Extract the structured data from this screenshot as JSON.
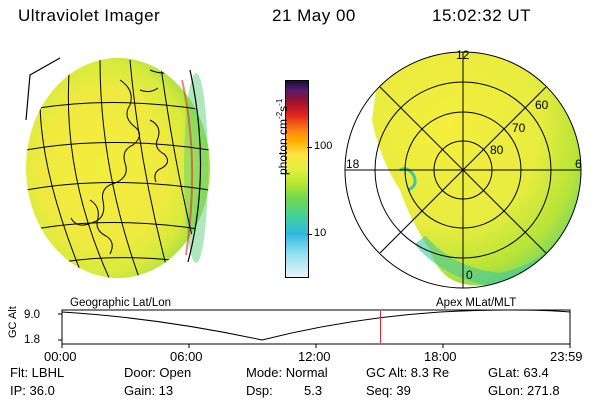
{
  "header": {
    "instrument": "Ultraviolet Imager",
    "date": "21 May 00",
    "time": "15:02:32 UT"
  },
  "colorbar": {
    "unit_main": "photon cm",
    "unit_sup1": "-2",
    "unit_mid": "s",
    "unit_sup2": "-1",
    "tick_labels": [
      "100",
      "10"
    ],
    "colors": [
      "#1a0f3a",
      "#9a1030",
      "#e02020",
      "#ff8a10",
      "#ffe040",
      "#b8e830",
      "#40d0a0",
      "#30b8e0",
      "#e8f4f8"
    ]
  },
  "left_panel": {
    "label": "Geographic Lat/Lon"
  },
  "right_panel": {
    "label": "Apex MLat/MLT",
    "mlt_labels": [
      "12",
      "18",
      "6",
      "0"
    ],
    "lat_labels": [
      "60",
      "70",
      "80"
    ]
  },
  "timeline": {
    "y_axis_label": "GC Alt",
    "y_ticks": [
      "9.0",
      "1.8"
    ],
    "x_ticks": [
      "00:00",
      "06:00",
      "12:00",
      "18:00",
      "23:59"
    ],
    "current_time_fraction": 0.627
  },
  "status": {
    "filter_label": "Flt: LBHL",
    "ip_label": "IP: 36.0",
    "door_label": "Door: Open",
    "gain_label": "Gain: 13",
    "mode_label": "Mode: Normal",
    "dsp_label": "Dsp:",
    "dsp_value": "5.3",
    "gcalt_label": "GC Alt: 8.3 Re",
    "seq_label": "Seq: 39",
    "glat_label": "GLat: 63.4",
    "glon_label": "GLon: 271.8"
  }
}
